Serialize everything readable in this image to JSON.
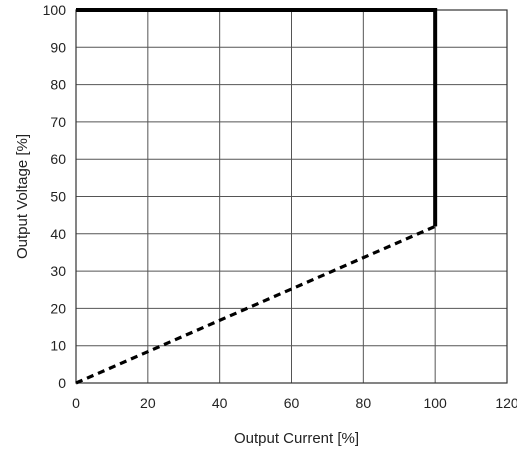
{
  "chart_data": {
    "type": "line",
    "xlabel": "Output Current [%]",
    "ylabel": "Output Voltage  [%]",
    "xlim": [
      0,
      120
    ],
    "ylim": [
      0,
      100
    ],
    "x_ticks": [
      "0",
      "20",
      "40",
      "60",
      "80",
      "100",
      "120"
    ],
    "y_ticks": [
      "0",
      "10",
      "20",
      "30",
      "40",
      "50",
      "60",
      "70",
      "80",
      "90",
      "100"
    ],
    "grid": true,
    "legend": "none",
    "series": [
      {
        "style": "solid",
        "color": "#000000",
        "x": [
          0,
          100,
          100
        ],
        "y": [
          100,
          100,
          42
        ]
      },
      {
        "style": "dashed",
        "color": "#000000",
        "x": [
          0,
          100
        ],
        "y": [
          0,
          42
        ]
      }
    ]
  }
}
